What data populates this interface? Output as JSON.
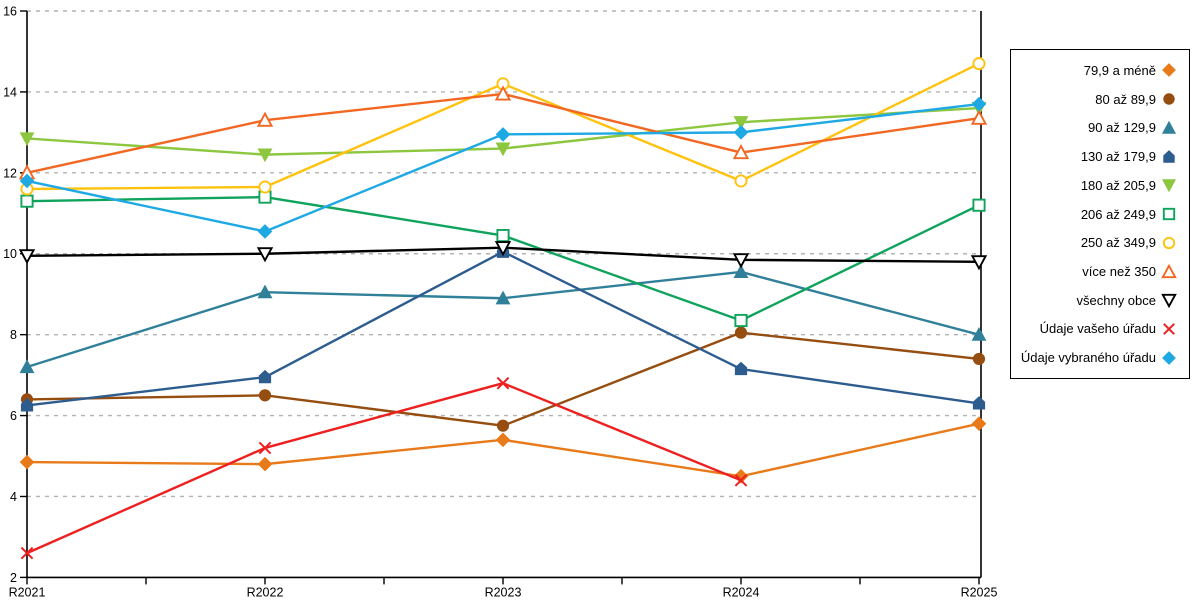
{
  "chart_data": {
    "type": "line",
    "title": "",
    "xlabel": "",
    "ylabel": "",
    "categories": [
      "R2021",
      "R2022",
      "R2023",
      "R2024",
      "R2025"
    ],
    "ylim": [
      2,
      16
    ],
    "ytick_step": 2,
    "yticks": [
      2,
      4,
      6,
      8,
      10,
      12,
      14,
      16
    ],
    "grid": "horizontal-dashed",
    "gridline_color": "#b3b3b3",
    "axis_color": "#000000",
    "legend_position": "right-outside",
    "series": [
      {
        "name": "79,9 a méně",
        "marker": "diamond",
        "fill": "filled",
        "color": "#E87A19",
        "values": [
          4.85,
          4.8,
          5.4,
          4.5,
          5.8
        ]
      },
      {
        "name": "80 až 89,9",
        "marker": "circle",
        "fill": "filled",
        "color": "#954D10",
        "values": [
          6.4,
          6.5,
          5.75,
          8.05,
          7.4
        ]
      },
      {
        "name": "90 až 129,9",
        "marker": "triangle-up",
        "fill": "filled",
        "color": "#31809A",
        "values": [
          7.2,
          9.05,
          8.9,
          9.55,
          8.0
        ]
      },
      {
        "name": "130 až 179,9",
        "marker": "pentagon",
        "fill": "filled",
        "color": "#2D5C8F",
        "values": [
          6.25,
          6.95,
          10.05,
          7.15,
          6.3
        ]
      },
      {
        "name": "180 až 205,9",
        "marker": "triangle-down",
        "fill": "filled",
        "color": "#8DC63F",
        "values": [
          12.85,
          12.45,
          12.6,
          13.25,
          13.6
        ]
      },
      {
        "name": "206 až 249,9",
        "marker": "square",
        "fill": "open",
        "color": "#0FA35C",
        "values": [
          11.3,
          11.4,
          10.45,
          8.35,
          11.2
        ]
      },
      {
        "name": "250 až 349,9",
        "marker": "circle",
        "fill": "open",
        "color": "#FFC20E",
        "values": [
          11.6,
          11.65,
          14.2,
          11.8,
          14.7
        ]
      },
      {
        "name": "více než 350",
        "marker": "triangle-up",
        "fill": "open",
        "color": "#F26722",
        "values": [
          12.0,
          13.3,
          13.95,
          12.5,
          13.35
        ]
      },
      {
        "name": "všechny obce",
        "marker": "triangle-down",
        "fill": "open",
        "color": "#000000",
        "values": [
          9.95,
          10.0,
          10.15,
          9.85,
          9.8
        ]
      },
      {
        "name": "Údaje vašeho úřadu",
        "marker": "x",
        "fill": "open",
        "color": "#ED1F1F",
        "values": [
          2.6,
          5.2,
          6.8,
          4.4,
          null
        ]
      },
      {
        "name": "Údaje vybraného úřadu",
        "marker": "diamond",
        "fill": "filled",
        "color": "#1FA9E4",
        "values": [
          11.8,
          10.55,
          12.95,
          13.0,
          13.7
        ]
      }
    ]
  }
}
